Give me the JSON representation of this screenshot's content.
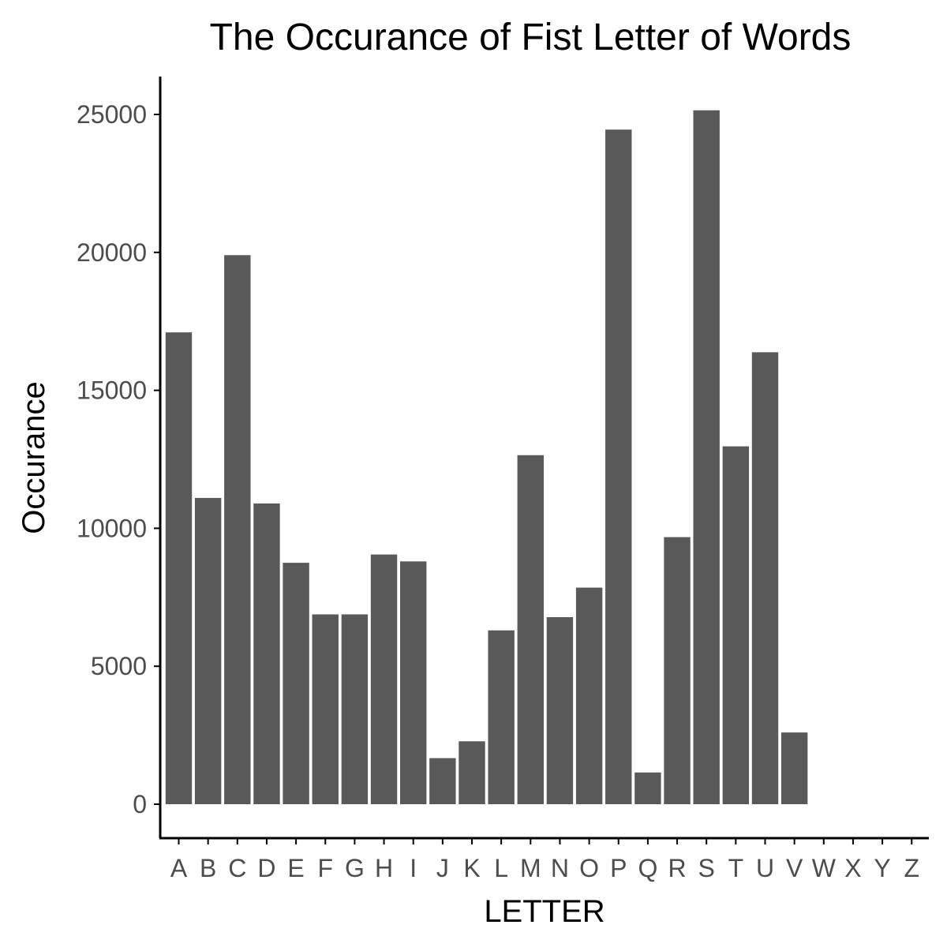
{
  "chart_data": {
    "type": "bar",
    "title": "The Occurance of Fist Letter of Words",
    "xlabel": "LETTER",
    "ylabel": "Occurance",
    "categories": [
      "A",
      "B",
      "C",
      "D",
      "E",
      "F",
      "G",
      "H",
      "I",
      "J",
      "K",
      "L",
      "M",
      "N",
      "O",
      "P",
      "Q",
      "R",
      "S",
      "T",
      "U",
      "V",
      "W",
      "X",
      "Y",
      "Z"
    ],
    "values": [
      17100,
      11100,
      19900,
      10900,
      8750,
      6880,
      6880,
      9050,
      8800,
      1670,
      2280,
      6300,
      12650,
      6780,
      7850,
      24450,
      1150,
      9680,
      25150,
      12970,
      16380,
      2600,
      0,
      0,
      0,
      0
    ],
    "ylim": [
      0,
      25000
    ],
    "yticks": [
      0,
      5000,
      10000,
      15000,
      20000,
      25000
    ],
    "grid": false,
    "legend": "none",
    "bar_color": "#595959",
    "axis_color": "#000000",
    "tick_label_color": "#4d4d4d"
  }
}
